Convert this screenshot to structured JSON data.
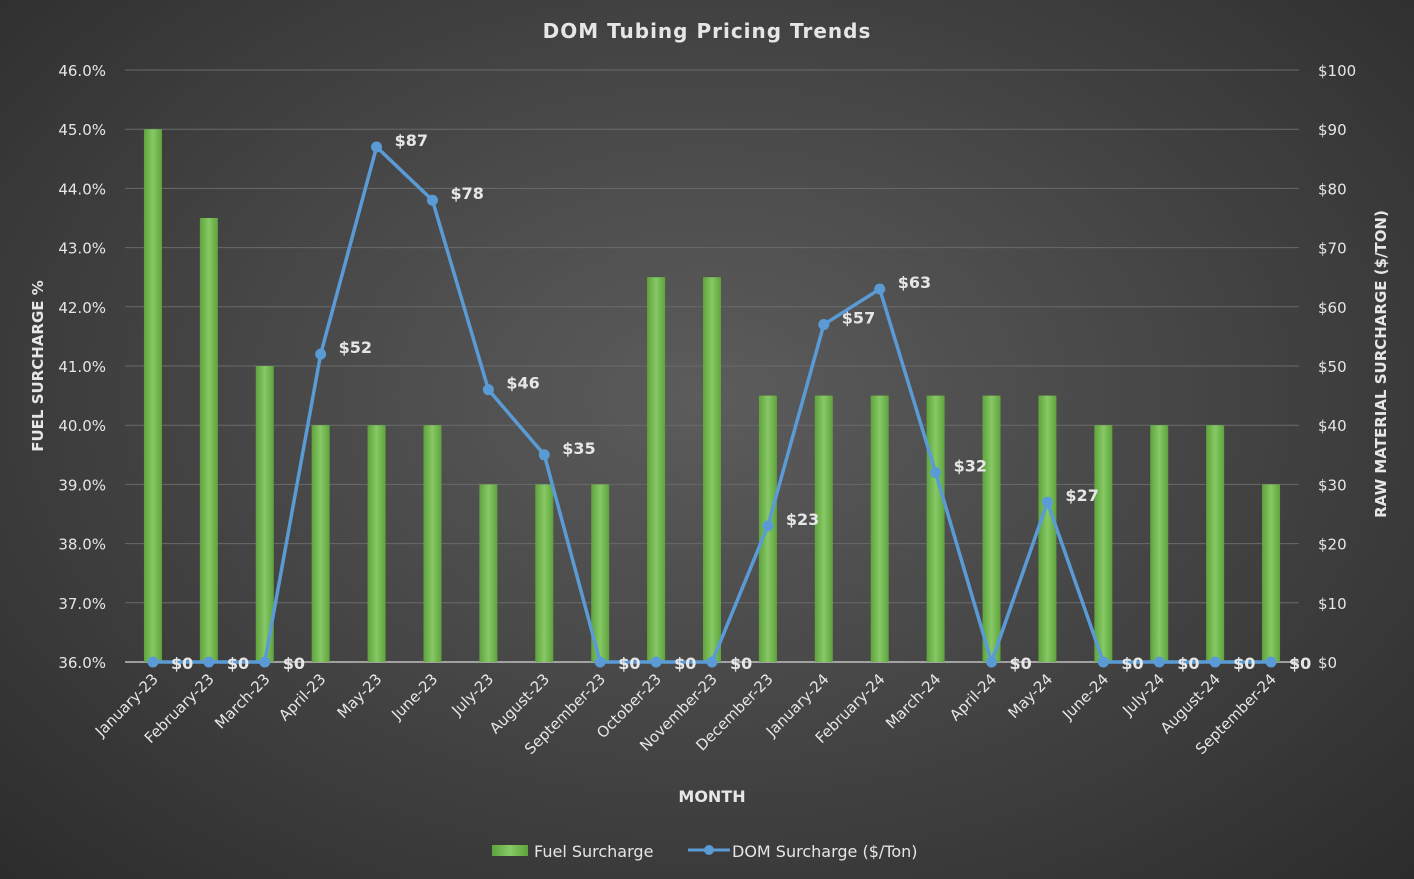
{
  "chart_data": {
    "type": "bar+line",
    "title": "DOM Tubing Pricing Trends",
    "xlabel": "MONTH",
    "ylabel_left": "FUEL SURCHARGE %",
    "ylabel_right": "RAW MATERIAL SURCHARGE ($/TON)",
    "ylim_left": [
      36,
      46
    ],
    "ylim_right": [
      0,
      100
    ],
    "left_ticks": [
      "36.0%",
      "37.0%",
      "38.0%",
      "39.0%",
      "40.0%",
      "41.0%",
      "42.0%",
      "43.0%",
      "44.0%",
      "45.0%",
      "46.0%"
    ],
    "right_ticks": [
      "$0",
      "$10",
      "$20",
      "$30",
      "$40",
      "$50",
      "$60",
      "$70",
      "$80",
      "$90",
      "$100"
    ],
    "grid": true,
    "legend_position": "bottom",
    "categories": [
      "January-23",
      "February-23",
      "March-23",
      "April-23",
      "May-23",
      "June-23",
      "July-23",
      "August-23",
      "September-23",
      "October-23",
      "November-23",
      "December-23",
      "January-24",
      "February-24",
      "March-24",
      "April-24",
      "May-24",
      "June-24",
      "July-24",
      "August-24",
      "September-24"
    ],
    "series": [
      {
        "name": "Fuel Surcharge",
        "type": "bar",
        "axis": "left",
        "color": "#76bd52",
        "values": [
          45.0,
          43.5,
          41.0,
          40.0,
          40.0,
          40.0,
          39.0,
          39.0,
          39.0,
          42.5,
          42.5,
          40.5,
          40.5,
          40.5,
          40.5,
          40.5,
          40.5,
          40.0,
          40.0,
          40.0,
          39.0
        ]
      },
      {
        "name": "DOM Surcharge ($/Ton)",
        "type": "line",
        "axis": "right",
        "color": "#5b9bd5",
        "values": [
          0,
          0,
          0,
          52,
          87,
          78,
          46,
          35,
          0,
          0,
          0,
          23,
          57,
          63,
          32,
          0,
          27,
          0,
          0,
          0,
          0
        ],
        "data_labels": [
          "$0",
          "$0",
          "$0",
          "$52",
          "$87",
          "$78",
          "$46",
          "$35",
          "$0",
          "$0",
          "$0",
          "$23",
          "$57",
          "$63",
          "$32",
          "$0",
          "$27",
          "$0",
          "$0",
          "$0",
          "$0"
        ]
      }
    ]
  }
}
